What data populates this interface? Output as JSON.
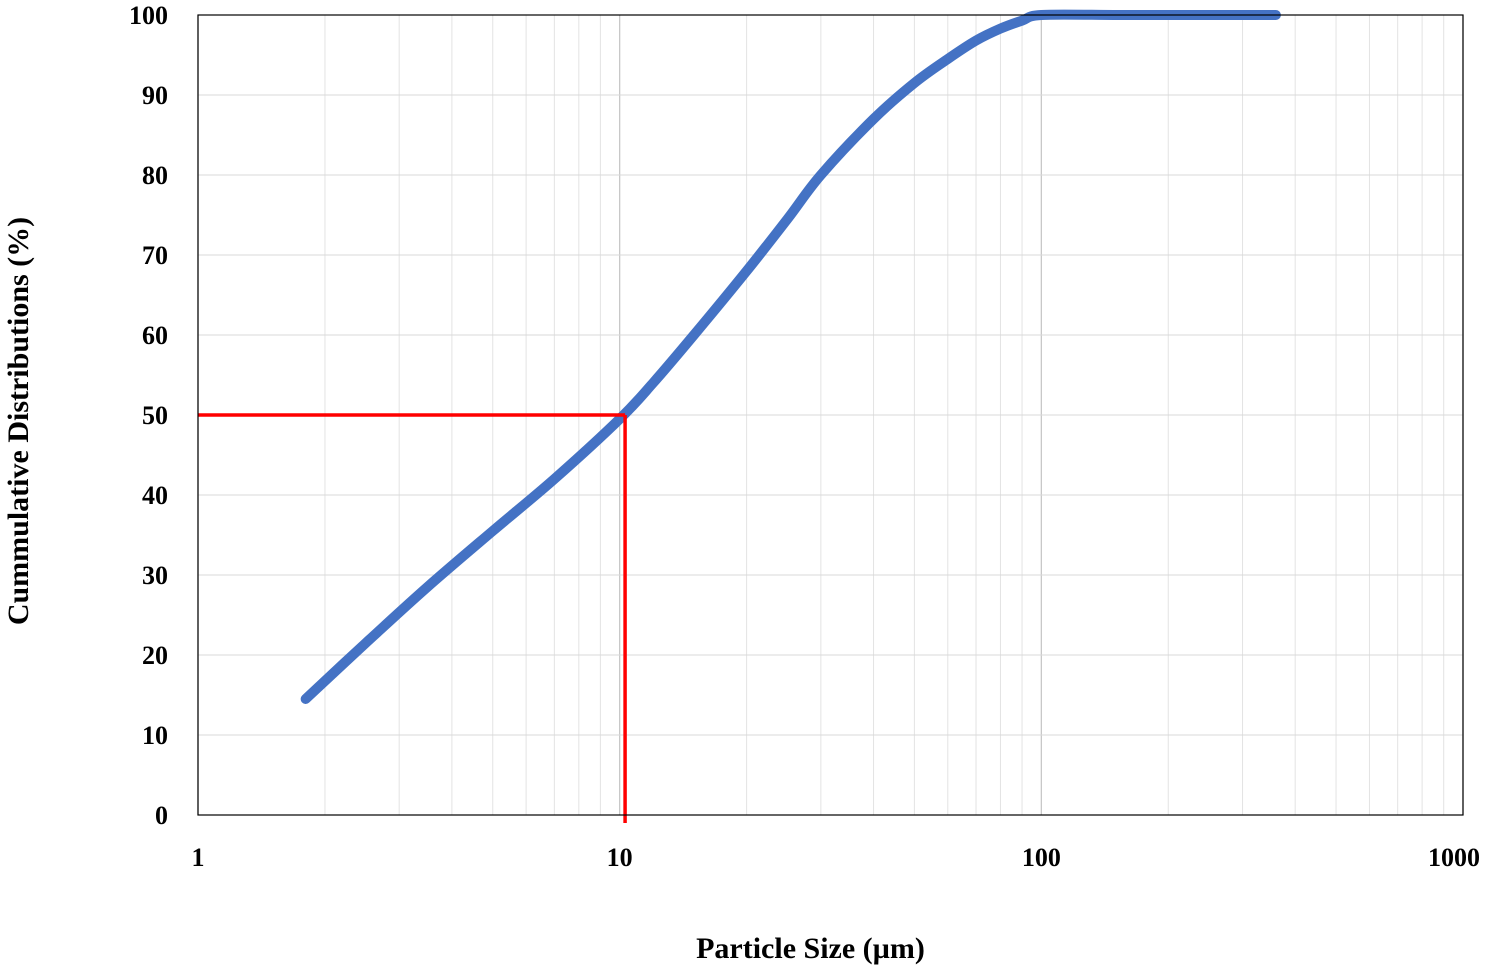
{
  "chart_data": {
    "type": "line",
    "title": "",
    "xlabel": "Particle Size (µm)",
    "ylabel": "Cummulative Distributions (%)",
    "x_scale": "log",
    "xlim": [
      1,
      1000
    ],
    "ylim": [
      0,
      100
    ],
    "x_ticks": [
      "1",
      "10",
      "100",
      "1000"
    ],
    "y_ticks": [
      "0",
      "10",
      "20",
      "30",
      "40",
      "50",
      "60",
      "70",
      "80",
      "90",
      "100"
    ],
    "grid": true,
    "legend": "none",
    "series": [
      {
        "color": "#4472C4",
        "x": [
          1.8,
          2.5,
          3.5,
          5,
          7,
          10,
          12,
          15,
          20,
          25,
          30,
          40,
          50,
          60,
          70,
          80,
          90,
          100,
          150,
          200,
          250,
          360
        ],
        "y": [
          14.5,
          21.5,
          28.5,
          35.5,
          42,
          49.5,
          54,
          60,
          68,
          74.5,
          80,
          87,
          91.5,
          94.5,
          96.8,
          98.3,
          99.3,
          100,
          100,
          100,
          100,
          100
        ]
      }
    ],
    "reference_lines": {
      "color": "#FF0000",
      "x": 10.3,
      "y": 50
    }
  }
}
